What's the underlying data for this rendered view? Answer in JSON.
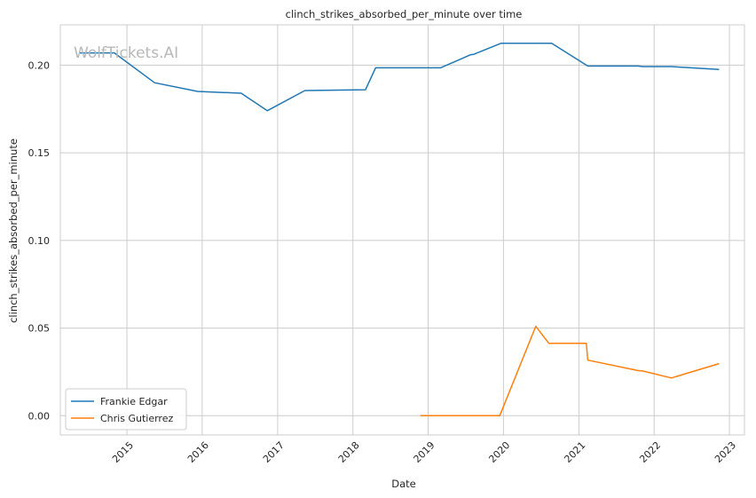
{
  "chart_data": {
    "type": "line",
    "title": "clinch_strikes_absorbed_per_minute over time",
    "xlabel": "Date",
    "ylabel": "clinch_strikes_absorbed_per_minute",
    "watermark": "WolfTickets.AI",
    "x_ticks": [
      "2015",
      "2016",
      "2017",
      "2018",
      "2019",
      "2020",
      "2021",
      "2022",
      "2023"
    ],
    "y_ticks": [
      "0.00",
      "0.05",
      "0.10",
      "0.15",
      "0.20"
    ],
    "xlim": [
      "2014-02-12",
      "2023-03-15"
    ],
    "ylim": [
      -0.011,
      0.223
    ],
    "grid": true,
    "legend_position": "lower-left",
    "series": [
      {
        "name": "Frankie Edgar",
        "color": "#1f77b4",
        "points": [
          [
            "2014-05-15",
            0.207
          ],
          [
            "2014-11-01",
            0.207
          ],
          [
            "2015-05-15",
            0.19
          ],
          [
            "2015-12-10",
            0.185
          ],
          [
            "2016-07-08",
            0.184
          ],
          [
            "2016-11-12",
            0.174
          ],
          [
            "2017-05-13",
            0.1855
          ],
          [
            "2018-03-03",
            0.186
          ],
          [
            "2018-04-21",
            0.1985
          ],
          [
            "2019-03-02",
            0.1985
          ],
          [
            "2019-07-27",
            0.206
          ],
          [
            "2019-08-10",
            0.2062
          ],
          [
            "2019-12-21",
            0.2125
          ],
          [
            "2020-08-22",
            0.2125
          ],
          [
            "2021-02-13",
            0.1995
          ],
          [
            "2021-10-16",
            0.1995
          ],
          [
            "2021-11-06",
            0.1992
          ],
          [
            "2022-03-26",
            0.1992
          ],
          [
            "2022-11-12",
            0.1975
          ]
        ]
      },
      {
        "name": "Chris Gutierrez",
        "color": "#ff7f0e",
        "points": [
          [
            "2018-11-24",
            0.0
          ],
          [
            "2019-12-14",
            0.0
          ],
          [
            "2020-06-06",
            0.051
          ],
          [
            "2020-08-08",
            0.0413
          ],
          [
            "2021-02-06",
            0.0413
          ],
          [
            "2021-02-13",
            0.0317
          ],
          [
            "2021-10-16",
            0.0257
          ],
          [
            "2021-11-06",
            0.0255
          ],
          [
            "2022-03-26",
            0.0215
          ],
          [
            "2022-11-12",
            0.0297
          ]
        ]
      }
    ]
  }
}
